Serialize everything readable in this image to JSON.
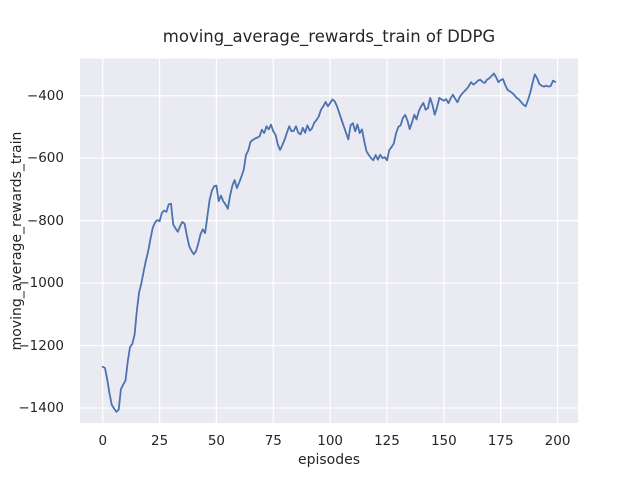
{
  "figure": {
    "title": "moving_average_rewards_train of DDPG",
    "xlabel": "episodes",
    "ylabel": "moving_average_rewards_train"
  },
  "chart_data": {
    "type": "line",
    "title": "moving_average_rewards_train of DDPG",
    "xlabel": "episodes",
    "ylabel": "moving_average_rewards_train",
    "xlim": [
      -10,
      209
    ],
    "ylim": [
      -1448,
      -281
    ],
    "xticks": [
      0,
      25,
      50,
      75,
      100,
      125,
      150,
      175,
      200
    ],
    "yticks": [
      -400,
      -600,
      -800,
      -1000,
      -1200,
      -1400
    ],
    "grid": true,
    "legend_position": "none",
    "plot_background": "#eaeaf2",
    "grid_color": "#ffffff",
    "text_color": "#262626",
    "series": [
      {
        "name": "moving_average_rewards_train",
        "color": "#4c72b0",
        "line_width": 1.8,
        "x_start": 0,
        "x_step": 1,
        "y": [
          -1268,
          -1272,
          -1310,
          -1355,
          -1390,
          -1402,
          -1412,
          -1405,
          -1340,
          -1325,
          -1312,
          -1250,
          -1205,
          -1195,
          -1165,
          -1090,
          -1030,
          -1000,
          -962,
          -928,
          -898,
          -858,
          -822,
          -806,
          -798,
          -802,
          -775,
          -768,
          -772,
          -748,
          -746,
          -812,
          -825,
          -836,
          -818,
          -804,
          -810,
          -848,
          -882,
          -896,
          -908,
          -898,
          -874,
          -844,
          -828,
          -840,
          -788,
          -734,
          -704,
          -690,
          -688,
          -738,
          -720,
          -738,
          -748,
          -762,
          -720,
          -688,
          -670,
          -696,
          -678,
          -658,
          -638,
          -590,
          -575,
          -548,
          -542,
          -537,
          -534,
          -530,
          -509,
          -520,
          -498,
          -508,
          -493,
          -514,
          -526,
          -556,
          -574,
          -558,
          -540,
          -519,
          -498,
          -514,
          -512,
          -498,
          -519,
          -524,
          -503,
          -519,
          -495,
          -512,
          -505,
          -487,
          -478,
          -466,
          -445,
          -434,
          -420,
          -434,
          -424,
          -412,
          -418,
          -434,
          -455,
          -477,
          -498,
          -520,
          -540,
          -495,
          -488,
          -514,
          -492,
          -520,
          -508,
          -545,
          -578,
          -590,
          -600,
          -607,
          -590,
          -605,
          -589,
          -600,
          -597,
          -607,
          -574,
          -565,
          -553,
          -520,
          -500,
          -495,
          -471,
          -462,
          -480,
          -507,
          -486,
          -461,
          -476,
          -450,
          -434,
          -423,
          -445,
          -440,
          -407,
          -430,
          -461,
          -438,
          -407,
          -412,
          -416,
          -411,
          -424,
          -408,
          -397,
          -410,
          -421,
          -404,
          -394,
          -386,
          -379,
          -369,
          -357,
          -365,
          -359,
          -352,
          -349,
          -356,
          -359,
          -349,
          -344,
          -337,
          -329,
          -341,
          -357,
          -350,
          -347,
          -366,
          -381,
          -386,
          -391,
          -398,
          -407,
          -412,
          -421,
          -429,
          -434,
          -414,
          -391,
          -360,
          -332,
          -344,
          -362,
          -368,
          -371,
          -368,
          -371,
          -369,
          -352,
          -356
        ]
      }
    ]
  }
}
